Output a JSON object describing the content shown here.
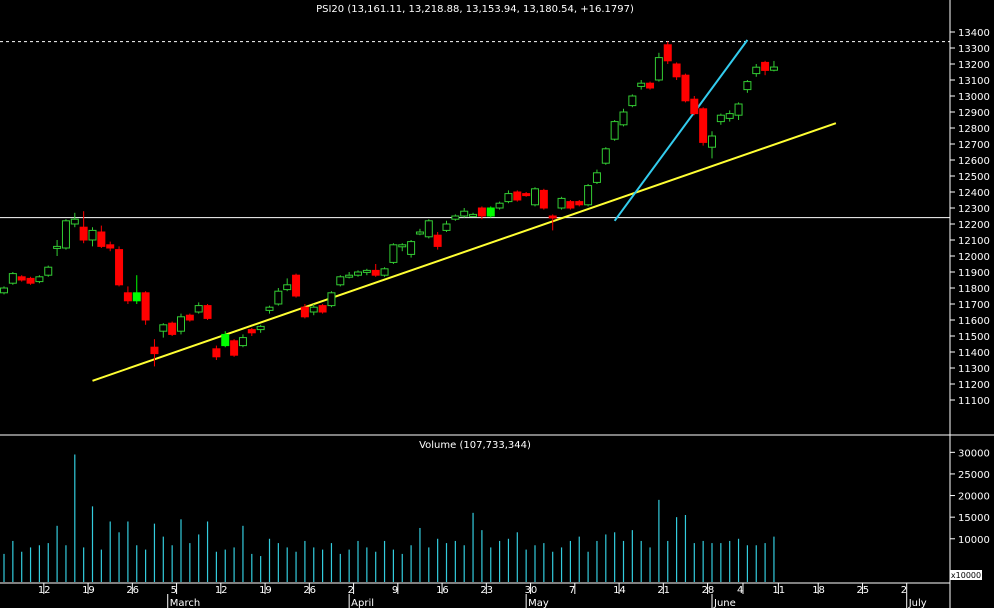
{
  "chart_data": [
    {
      "type": "candlestick",
      "title": "PSI20 (13,161.11, 13,218.88, 13,153.94, 13,180.54, +16.1797)",
      "ylim": [
        11100,
        13450
      ],
      "yticks": [
        "13400",
        "13300",
        "13200",
        "13100",
        "13000",
        "12900",
        "12800",
        "12700",
        "12600",
        "12500",
        "12400",
        "12300",
        "12200",
        "12100",
        "12000",
        "11900",
        "11800",
        "11700",
        "11600",
        "11500",
        "11400",
        "11300",
        "11200",
        "11100"
      ],
      "ytick_values": [
        13400,
        13300,
        13200,
        13100,
        13000,
        12900,
        12800,
        12700,
        12600,
        12500,
        12400,
        12300,
        12200,
        12100,
        12000,
        11900,
        11800,
        11700,
        11600,
        11500,
        11400,
        11300,
        11200,
        11100
      ],
      "reference_lines": [
        {
          "style": "solid",
          "color": "#ffffff",
          "value": 12240
        },
        {
          "style": "dashed",
          "color": "#ffffff",
          "value": 13340
        }
      ],
      "trendlines": [
        {
          "color": "#ffff33",
          "from": [
            10,
            11220
          ],
          "to": [
            94,
            12830
          ]
        },
        {
          "color": "#33ccee",
          "from": [
            69,
            12220
          ],
          "to": [
            84,
            13350
          ]
        }
      ],
      "colors": {
        "up": "#33cc33",
        "down": "#ff0000",
        "up_highlight": "#00ff00"
      },
      "candles": [
        {
          "i": 0,
          "o": 11770,
          "h": 11810,
          "l": 11760,
          "c": 11800
        },
        {
          "i": 1,
          "o": 11830,
          "h": 11900,
          "l": 11820,
          "c": 11890
        },
        {
          "i": 2,
          "o": 11870,
          "h": 11880,
          "l": 11840,
          "c": 11850
        },
        {
          "i": 3,
          "o": 11860,
          "h": 11870,
          "l": 11820,
          "c": 11830
        },
        {
          "i": 4,
          "o": 11840,
          "h": 11880,
          "l": 11830,
          "c": 11870
        },
        {
          "i": 5,
          "o": 11880,
          "h": 11940,
          "l": 11870,
          "c": 11930
        },
        {
          "i": 6,
          "o": 12050,
          "h": 12100,
          "l": 12000,
          "c": 12060
        },
        {
          "i": 7,
          "o": 12050,
          "h": 12230,
          "l": 12040,
          "c": 12220
        },
        {
          "i": 8,
          "o": 12200,
          "h": 12270,
          "l": 12180,
          "c": 12230
        },
        {
          "i": 9,
          "o": 12180,
          "h": 12280,
          "l": 12080,
          "c": 12100
        },
        {
          "i": 10,
          "o": 12100,
          "h": 12180,
          "l": 12060,
          "c": 12160
        },
        {
          "i": 11,
          "o": 12150,
          "h": 12190,
          "l": 12050,
          "c": 12060
        },
        {
          "i": 12,
          "o": 12070,
          "h": 12090,
          "l": 12030,
          "c": 12050
        },
        {
          "i": 13,
          "o": 12040,
          "h": 12060,
          "l": 11810,
          "c": 11820
        },
        {
          "i": 14,
          "o": 11770,
          "h": 11810,
          "l": 11700,
          "c": 11720
        },
        {
          "i": 15,
          "o": 11720,
          "h": 11880,
          "l": 11700,
          "c": 11770,
          "hl": true
        },
        {
          "i": 16,
          "o": 11770,
          "h": 11780,
          "l": 11570,
          "c": 11600
        },
        {
          "i": 17,
          "o": 11430,
          "h": 11480,
          "l": 11310,
          "c": 11390
        },
        {
          "i": 18,
          "o": 11530,
          "h": 11580,
          "l": 11490,
          "c": 11570
        },
        {
          "i": 19,
          "o": 11580,
          "h": 11590,
          "l": 11500,
          "c": 11510
        },
        {
          "i": 20,
          "o": 11530,
          "h": 11640,
          "l": 11510,
          "c": 11620
        },
        {
          "i": 21,
          "o": 11630,
          "h": 11640,
          "l": 11590,
          "c": 11600
        },
        {
          "i": 22,
          "o": 11650,
          "h": 11710,
          "l": 11640,
          "c": 11690
        },
        {
          "i": 23,
          "o": 11690,
          "h": 11700,
          "l": 11600,
          "c": 11610
        },
        {
          "i": 24,
          "o": 11420,
          "h": 11440,
          "l": 11350,
          "c": 11370
        },
        {
          "i": 25,
          "o": 11440,
          "h": 11530,
          "l": 11430,
          "c": 11510,
          "hl": true
        },
        {
          "i": 26,
          "o": 11470,
          "h": 11480,
          "l": 11370,
          "c": 11380
        },
        {
          "i": 27,
          "o": 11440,
          "h": 11510,
          "l": 11430,
          "c": 11490
        },
        {
          "i": 28,
          "o": 11540,
          "h": 11550,
          "l": 11500,
          "c": 11520
        },
        {
          "i": 29,
          "o": 11540,
          "h": 11570,
          "l": 11520,
          "c": 11560
        },
        {
          "i": 30,
          "o": 11660,
          "h": 11690,
          "l": 11640,
          "c": 11680
        },
        {
          "i": 31,
          "o": 11700,
          "h": 11800,
          "l": 11690,
          "c": 11780
        },
        {
          "i": 32,
          "o": 11790,
          "h": 11860,
          "l": 11780,
          "c": 11820
        },
        {
          "i": 33,
          "o": 11880,
          "h": 11890,
          "l": 11740,
          "c": 11750
        },
        {
          "i": 34,
          "o": 11680,
          "h": 11700,
          "l": 11610,
          "c": 11620
        },
        {
          "i": 35,
          "o": 11650,
          "h": 11700,
          "l": 11630,
          "c": 11680
        },
        {
          "i": 36,
          "o": 11690,
          "h": 11700,
          "l": 11640,
          "c": 11650
        },
        {
          "i": 37,
          "o": 11690,
          "h": 11780,
          "l": 11680,
          "c": 11770
        },
        {
          "i": 38,
          "o": 11820,
          "h": 11880,
          "l": 11810,
          "c": 11870
        },
        {
          "i": 39,
          "o": 11870,
          "h": 11900,
          "l": 11860,
          "c": 11880
        },
        {
          "i": 40,
          "o": 11880,
          "h": 11910,
          "l": 11870,
          "c": 11900
        },
        {
          "i": 41,
          "o": 11900,
          "h": 11920,
          "l": 11880,
          "c": 11910
        },
        {
          "i": 42,
          "o": 11910,
          "h": 11950,
          "l": 11870,
          "c": 11880
        },
        {
          "i": 43,
          "o": 11880,
          "h": 11930,
          "l": 11870,
          "c": 11920
        },
        {
          "i": 44,
          "o": 11960,
          "h": 12080,
          "l": 11950,
          "c": 12070
        },
        {
          "i": 45,
          "o": 12060,
          "h": 12080,
          "l": 12030,
          "c": 12070
        },
        {
          "i": 46,
          "o": 12010,
          "h": 12100,
          "l": 11990,
          "c": 12090
        },
        {
          "i": 47,
          "o": 12140,
          "h": 12170,
          "l": 12130,
          "c": 12150
        },
        {
          "i": 48,
          "o": 12120,
          "h": 12230,
          "l": 12110,
          "c": 12220
        },
        {
          "i": 49,
          "o": 12130,
          "h": 12150,
          "l": 12040,
          "c": 12060
        },
        {
          "i": 50,
          "o": 12160,
          "h": 12220,
          "l": 12150,
          "c": 12200
        },
        {
          "i": 51,
          "o": 12230,
          "h": 12260,
          "l": 12220,
          "c": 12250
        },
        {
          "i": 52,
          "o": 12250,
          "h": 12300,
          "l": 12240,
          "c": 12280
        },
        {
          "i": 53,
          "o": 12260,
          "h": 12270,
          "l": 12250,
          "c": 12260
        },
        {
          "i": 54,
          "o": 12300,
          "h": 12310,
          "l": 12230,
          "c": 12250
        },
        {
          "i": 55,
          "o": 12250,
          "h": 12310,
          "l": 12240,
          "c": 12300,
          "hl": true
        },
        {
          "i": 56,
          "o": 12300,
          "h": 12340,
          "l": 12290,
          "c": 12330
        },
        {
          "i": 57,
          "o": 12340,
          "h": 12410,
          "l": 12330,
          "c": 12390
        },
        {
          "i": 58,
          "o": 12400,
          "h": 12410,
          "l": 12340,
          "c": 12350
        },
        {
          "i": 59,
          "o": 12390,
          "h": 12400,
          "l": 12370,
          "c": 12380
        },
        {
          "i": 60,
          "o": 12320,
          "h": 12430,
          "l": 12310,
          "c": 12420
        },
        {
          "i": 61,
          "o": 12410,
          "h": 12420,
          "l": 12290,
          "c": 12300
        },
        {
          "i": 62,
          "o": 12250,
          "h": 12260,
          "l": 12160,
          "c": 12240
        },
        {
          "i": 63,
          "o": 12300,
          "h": 12370,
          "l": 12290,
          "c": 12360
        },
        {
          "i": 64,
          "o": 12340,
          "h": 12350,
          "l": 12290,
          "c": 12300
        },
        {
          "i": 65,
          "o": 12340,
          "h": 12350,
          "l": 12310,
          "c": 12320
        },
        {
          "i": 66,
          "o": 12320,
          "h": 12450,
          "l": 12310,
          "c": 12440
        },
        {
          "i": 67,
          "o": 12460,
          "h": 12540,
          "l": 12450,
          "c": 12520
        },
        {
          "i": 68,
          "o": 12580,
          "h": 12680,
          "l": 12570,
          "c": 12670
        },
        {
          "i": 69,
          "o": 12730,
          "h": 12850,
          "l": 12720,
          "c": 12840
        },
        {
          "i": 70,
          "o": 12820,
          "h": 12920,
          "l": 12810,
          "c": 12900
        },
        {
          "i": 71,
          "o": 12940,
          "h": 13010,
          "l": 12930,
          "c": 13000
        },
        {
          "i": 72,
          "o": 13060,
          "h": 13100,
          "l": 13040,
          "c": 13080
        },
        {
          "i": 73,
          "o": 13080,
          "h": 13090,
          "l": 13040,
          "c": 13050
        },
        {
          "i": 74,
          "o": 13100,
          "h": 13270,
          "l": 13090,
          "c": 13240
        },
        {
          "i": 75,
          "o": 13320,
          "h": 13340,
          "l": 13200,
          "c": 13220
        },
        {
          "i": 76,
          "o": 13200,
          "h": 13210,
          "l": 13100,
          "c": 13120
        },
        {
          "i": 77,
          "o": 13130,
          "h": 13140,
          "l": 12960,
          "c": 12970
        },
        {
          "i": 78,
          "o": 12980,
          "h": 13000,
          "l": 12880,
          "c": 12890
        },
        {
          "i": 79,
          "o": 12920,
          "h": 12930,
          "l": 12690,
          "c": 12710
        },
        {
          "i": 80,
          "o": 12680,
          "h": 12780,
          "l": 12610,
          "c": 12750
        },
        {
          "i": 81,
          "o": 12840,
          "h": 12890,
          "l": 12820,
          "c": 12880
        },
        {
          "i": 82,
          "o": 12860,
          "h": 12910,
          "l": 12840,
          "c": 12890
        },
        {
          "i": 83,
          "o": 12880,
          "h": 12960,
          "l": 12850,
          "c": 12950
        },
        {
          "i": 84,
          "o": 13040,
          "h": 13100,
          "l": 13020,
          "c": 13090
        },
        {
          "i": 85,
          "o": 13140,
          "h": 13200,
          "l": 13120,
          "c": 13180
        },
        {
          "i": 86,
          "o": 13210,
          "h": 13220,
          "l": 13130,
          "c": 13160
        },
        {
          "i": 87,
          "o": 13161,
          "h": 13219,
          "l": 13154,
          "c": 13181
        }
      ]
    },
    {
      "type": "bar",
      "title": "Volume (107,733,344)",
      "ylim": [
        0,
        31000
      ],
      "yticks": [
        "30000",
        "25000",
        "20000",
        "15000",
        "10000"
      ],
      "ytick_values": [
        30000,
        25000,
        20000,
        15000,
        10000
      ],
      "unit_box": "x10000",
      "color": "#33ccdd",
      "values": [
        6500,
        9500,
        7000,
        8000,
        8500,
        9000,
        13000,
        8500,
        29500,
        8000,
        17500,
        7500,
        14000,
        11500,
        14000,
        8500,
        7500,
        13500,
        10500,
        8500,
        14500,
        9000,
        11000,
        14000,
        7000,
        7500,
        8000,
        13000,
        6500,
        6000,
        10000,
        9000,
        8000,
        7000,
        9500,
        8000,
        7500,
        9000,
        6500,
        7500,
        9500,
        8000,
        7000,
        9500,
        7500,
        6500,
        8500,
        12500,
        8000,
        10000,
        9000,
        9500,
        8500,
        16000,
        12000,
        8000,
        9500,
        10000,
        11500,
        7500,
        8500,
        9000,
        7000,
        8000,
        9500,
        10500,
        7000,
        9500,
        11000,
        11500,
        9500,
        12000,
        9500,
        8000,
        19000,
        9500,
        15000,
        15500,
        9000,
        9500,
        9000,
        9000,
        9500,
        10000,
        8500,
        8500,
        9000,
        10500
      ],
      "x_tick_labels": [
        "12",
        "19",
        "26",
        "5",
        "12",
        "19",
        "26",
        "2",
        "9",
        "16",
        "23",
        "30",
        "7",
        "14",
        "21",
        "28",
        "4",
        "11",
        "18",
        "25",
        "2"
      ],
      "x_tick_positions": [
        4.5,
        9.5,
        14.5,
        19.5,
        24.5,
        29.5,
        34.5,
        39.5,
        44.5,
        49.5,
        54.5,
        59.5,
        64.5,
        69.5,
        74.5,
        79.5,
        83.5,
        87.5,
        92,
        97,
        102
      ],
      "months": [
        "March",
        "April",
        "May",
        "June",
        "July"
      ],
      "month_positions": [
        18.5,
        39,
        59,
        80,
        102
      ]
    }
  ]
}
